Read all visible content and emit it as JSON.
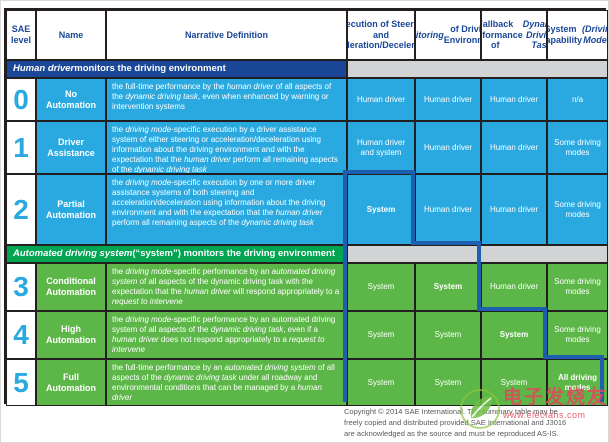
{
  "table": {
    "header": {
      "sae_level": "SAE level",
      "name": "Name",
      "narrative": "Narrative Definition",
      "execution": "Execution of Steering and Acceleration/Deceleration",
      "monitoring": [
        {
          "t": "Monitoring",
          "i": 1
        },
        {
          "t": " of Driving Environment"
        }
      ],
      "fallback": [
        {
          "t": "Fallback Performance of "
        },
        {
          "t": "Dynamic Driving Task",
          "i": 1
        }
      ],
      "capability": [
        {
          "t": "System Capability "
        },
        {
          "t": "(Driving Modes)",
          "i": 1
        }
      ]
    },
    "sections": [
      {
        "title": [
          {
            "t": "Human driver",
            "i": 1
          },
          {
            "t": " monitors the driving environment"
          }
        ]
      },
      {
        "title": [
          {
            "t": "Automated driving system",
            "i": 1
          },
          {
            "t": " (“system”) monitors the driving environment"
          }
        ]
      }
    ],
    "rows": [
      {
        "level": "0",
        "name": "No Automation",
        "definition": [
          {
            "t": "the full-time performance by the "
          },
          {
            "t": "human driver",
            "i": 1
          },
          {
            "t": " of all aspects of the "
          },
          {
            "t": "dynamic driving task",
            "i": 1
          },
          {
            "t": ", even when enhanced by warning or intervention systems"
          }
        ],
        "exe": [
          {
            "t": "Human driver"
          }
        ],
        "mon": [
          {
            "t": "Human driver"
          }
        ],
        "fb": [
          {
            "t": "Human driver"
          }
        ],
        "cap": [
          {
            "t": "n/a"
          }
        ]
      },
      {
        "level": "1",
        "name": "Driver Assistance",
        "definition": [
          {
            "t": "the "
          },
          {
            "t": "driving mode",
            "i": 1
          },
          {
            "t": "-specific execution by a driver assistance system of either steering or acceleration/deceleration using information about the driving environment and with the expectation that the "
          },
          {
            "t": "human driver",
            "i": 1
          },
          {
            "t": " perform all remaining aspects of the "
          },
          {
            "t": "dynamic driving task",
            "i": 1
          }
        ],
        "exe": [
          {
            "t": "Human driver and system"
          }
        ],
        "mon": [
          {
            "t": "Human driver"
          }
        ],
        "fb": [
          {
            "t": "Human driver"
          }
        ],
        "cap": [
          {
            "t": "Some driving modes"
          }
        ]
      },
      {
        "level": "2",
        "name": "Partial Automation",
        "definition": [
          {
            "t": "the "
          },
          {
            "t": "driving mode",
            "i": 1
          },
          {
            "t": "-specific execution by one or more driver assistance systems of both steering and acceleration/deceleration using information about the driving environment and with the expectation that the "
          },
          {
            "t": "human driver",
            "i": 1
          },
          {
            "t": " perform all remaining aspects of the "
          },
          {
            "t": "dynamic driving task",
            "i": 1
          }
        ],
        "exe": [
          {
            "t": "System",
            "b": 1
          }
        ],
        "mon": [
          {
            "t": "Human driver"
          }
        ],
        "fb": [
          {
            "t": "Human driver"
          }
        ],
        "cap": [
          {
            "t": "Some driving modes"
          }
        ]
      },
      {
        "level": "3",
        "name": "Conditional Automation",
        "definition": [
          {
            "t": "the "
          },
          {
            "t": "driving mode",
            "i": 1
          },
          {
            "t": "-specific performance by an "
          },
          {
            "t": "automated driving system",
            "i": 1
          },
          {
            "t": " of all aspects of the dynamic driving task with the expectation that the "
          },
          {
            "t": "human driver",
            "i": 1
          },
          {
            "t": " will respond appropriately to a "
          },
          {
            "t": "request to intervene",
            "i": 1
          }
        ],
        "exe": [
          {
            "t": "System"
          }
        ],
        "mon": [
          {
            "t": "System",
            "b": 1
          }
        ],
        "fb": [
          {
            "t": "Human driver"
          }
        ],
        "cap": [
          {
            "t": "Some driving modes"
          }
        ]
      },
      {
        "level": "4",
        "name": "High Automation",
        "definition": [
          {
            "t": "the "
          },
          {
            "t": "driving mode",
            "i": 1
          },
          {
            "t": "-specific performance by an automated driving system of all aspects of the "
          },
          {
            "t": "dynamic driving task",
            "i": 1
          },
          {
            "t": ", even if a "
          },
          {
            "t": "human driver",
            "i": 1
          },
          {
            "t": " does not respond appropriately to a "
          },
          {
            "t": "request to intervene",
            "i": 1
          }
        ],
        "exe": [
          {
            "t": "System"
          }
        ],
        "mon": [
          {
            "t": "System"
          }
        ],
        "fb": [
          {
            "t": "System",
            "b": 1
          }
        ],
        "cap": [
          {
            "t": "Some driving modes"
          }
        ]
      },
      {
        "level": "5",
        "name": "Full Automation",
        "definition": [
          {
            "t": "the full-time performance by an "
          },
          {
            "t": "automated driving system",
            "i": 1
          },
          {
            "t": " of all aspects of the "
          },
          {
            "t": "dynamic driving task",
            "i": 1
          },
          {
            "t": " under all roadway and environmental conditions that can be managed by a "
          },
          {
            "t": "human driver",
            "i": 1
          }
        ],
        "exe": [
          {
            "t": "System"
          }
        ],
        "mon": [
          {
            "t": "System"
          }
        ],
        "fb": [
          {
            "t": "System"
          }
        ],
        "cap": [
          {
            "t": "All driving modes",
            "b": 1
          }
        ]
      }
    ]
  },
  "footer": {
    "copyright": [
      "Copyright © 2014 SAE International. The summary table may be",
      "freely copied and distributed provided SAE International and J3016",
      "are acknowledged as the source and must be reproduced AS-IS."
    ]
  },
  "watermark": {
    "title": "电子发烧友",
    "url": "www.elecfans.com"
  },
  "colors": {
    "cell_blue": "#29a9e0",
    "cell_green": "#5cb748",
    "band_navy": "#1a4798",
    "band_green": "#00a551",
    "header_text": "#1a4798",
    "staircase_blue": "#1d5fae",
    "gray_band": "#d1d3d4"
  }
}
